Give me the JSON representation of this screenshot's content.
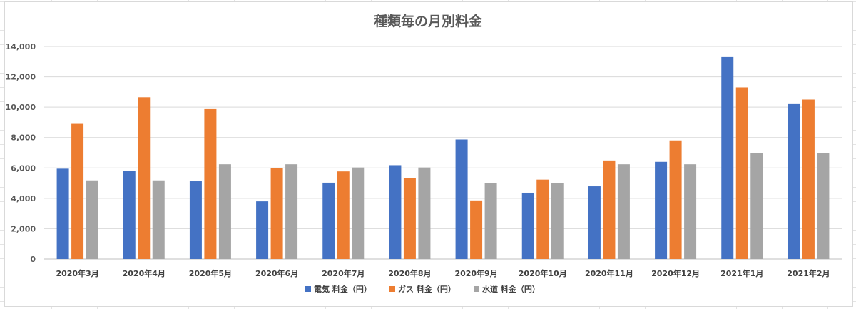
{
  "chart_data": {
    "type": "bar",
    "title": "種類毎の月別料金",
    "categories": [
      "2020年3月",
      "2020年4月",
      "2020年5月",
      "2020年6月",
      "2020年7月",
      "2020年8月",
      "2020年9月",
      "2020年10月",
      "2020年11月",
      "2020年12月",
      "2021年1月",
      "2021年2月"
    ],
    "series": [
      {
        "name": "電気 料金（円）",
        "color": "#4472c4",
        "values": [
          5950,
          5780,
          5120,
          3800,
          5030,
          6180,
          7870,
          4370,
          4790,
          6400,
          13300,
          10200
        ]
      },
      {
        "name": "ガス 料金（円）",
        "color": "#ed7d31",
        "values": [
          8900,
          10650,
          9870,
          5990,
          5770,
          5350,
          3860,
          5230,
          6490,
          7810,
          11300,
          10500
        ]
      },
      {
        "name": "水道 料金（円）",
        "color": "#a5a5a5",
        "values": [
          5180,
          5180,
          6240,
          6240,
          6030,
          6030,
          4990,
          4990,
          6240,
          6240,
          6960,
          6960
        ]
      }
    ],
    "ylim": [
      0,
      14000
    ],
    "yticks": [
      "0",
      "2,000",
      "4,000",
      "6,000",
      "8,000",
      "10,000",
      "12,000",
      "14,000"
    ],
    "grid": true,
    "legend": "bottom"
  }
}
